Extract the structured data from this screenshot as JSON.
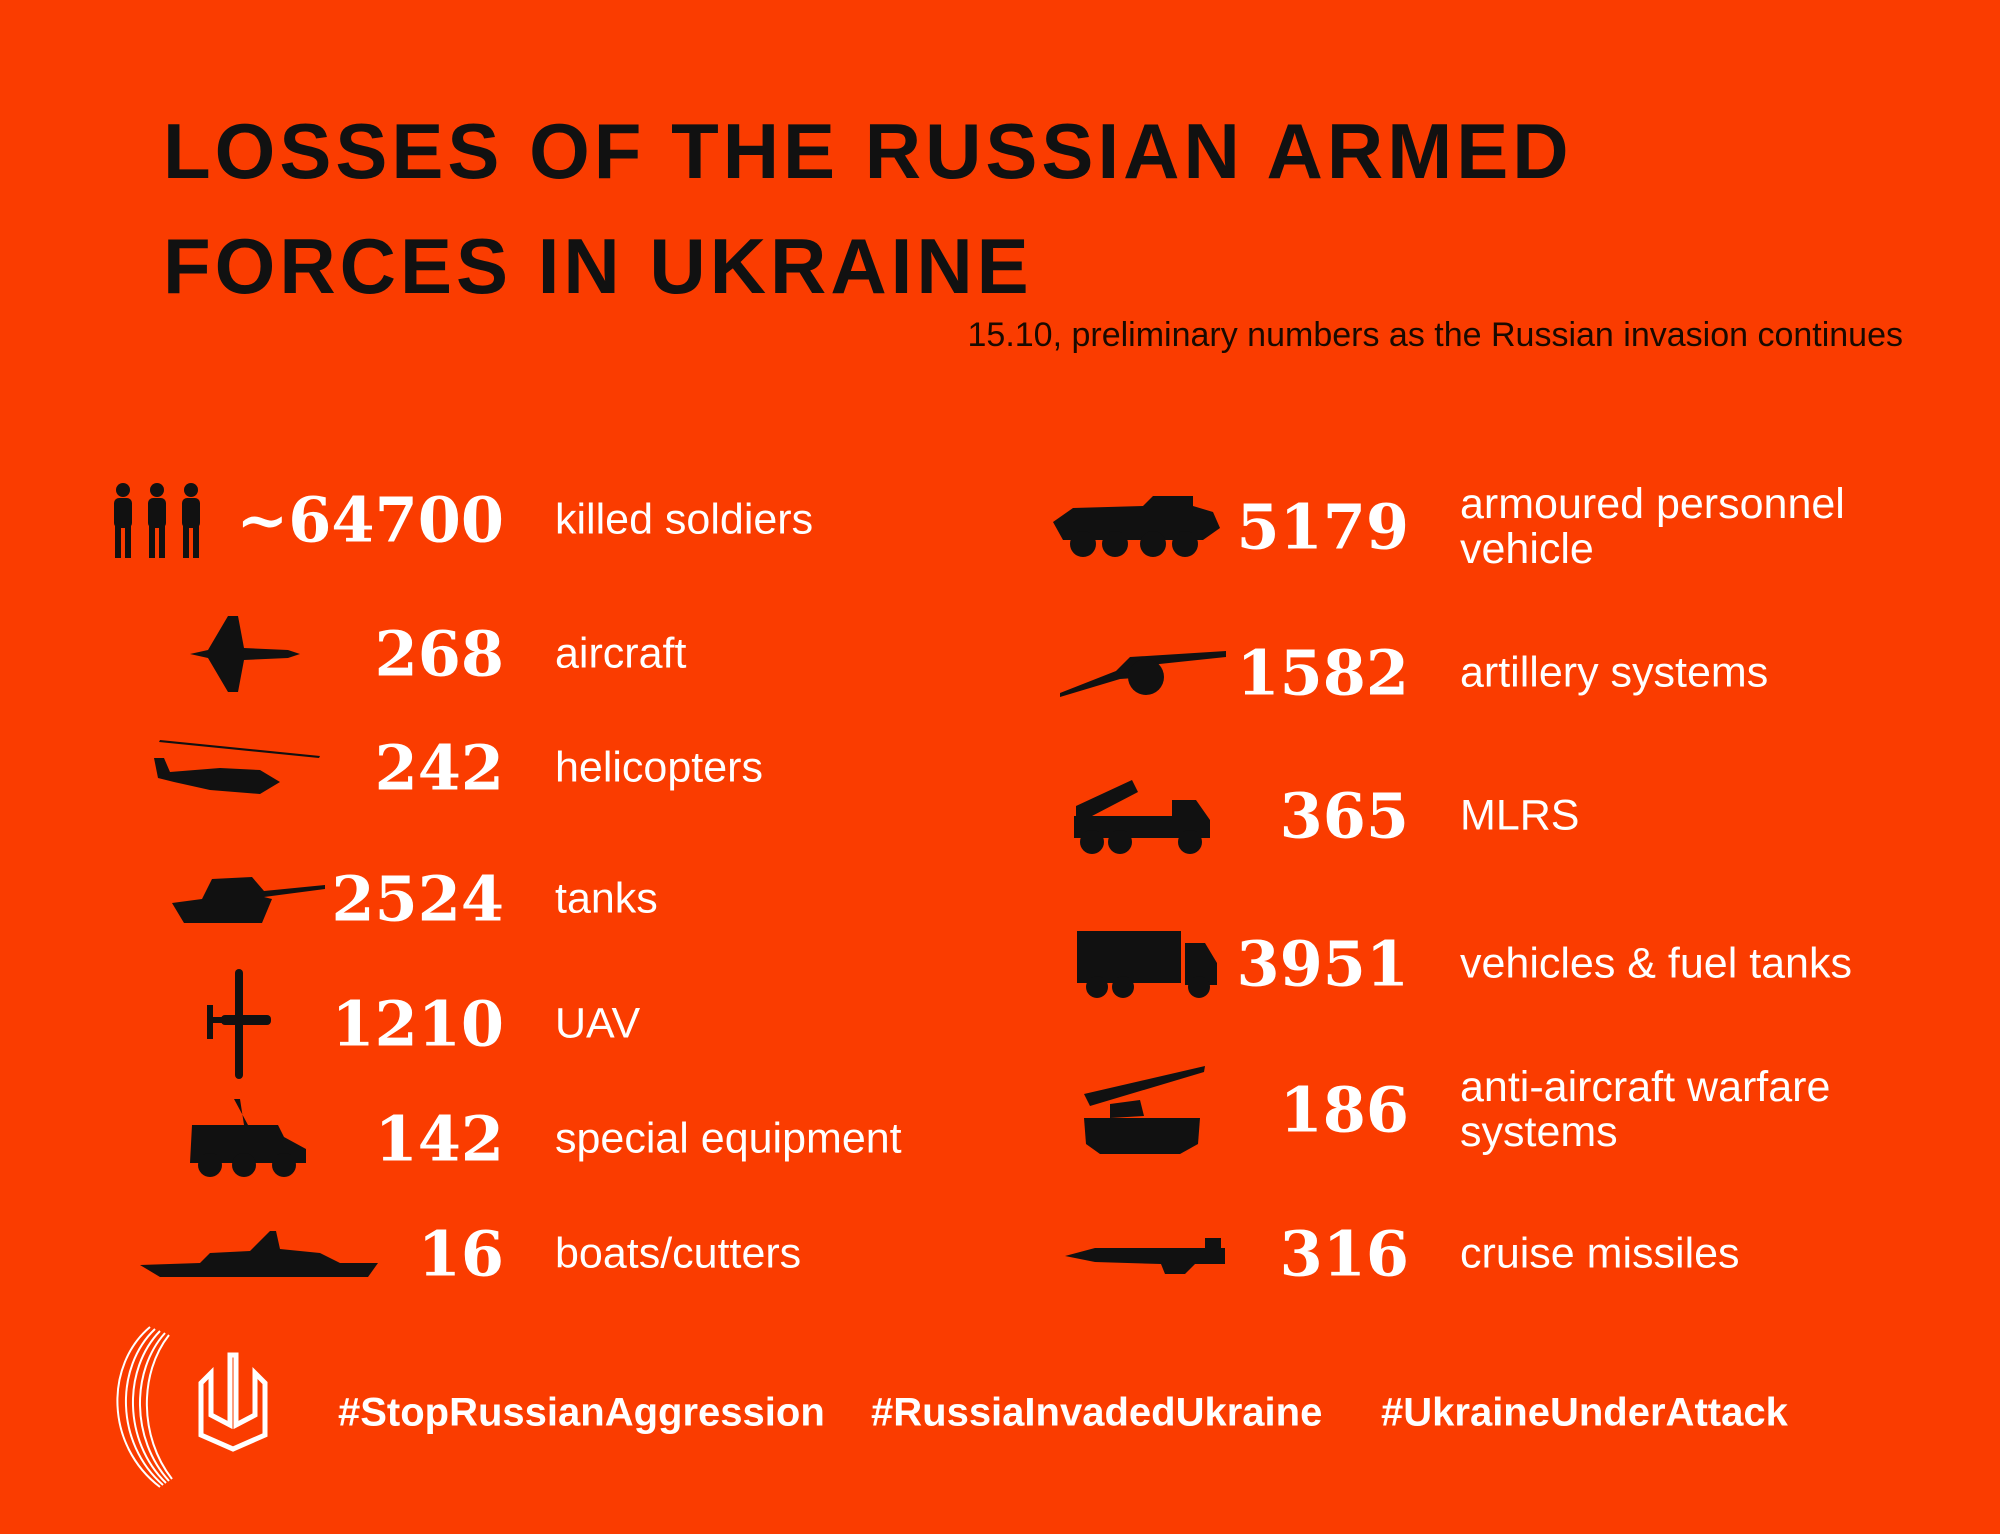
{
  "header": {
    "title": "LOSSES OF THE RUSSIAN ARMED FORCES IN UKRAINE",
    "subtitle": "15.10, preliminary numbers as the Russian invasion continues"
  },
  "left_items": [
    {
      "number": "~64700",
      "label": "killed soldiers"
    },
    {
      "number": 268,
      "label": "aircraft"
    },
    {
      "number": 242,
      "label": "helicopters"
    },
    {
      "number": 2524,
      "label": "tanks"
    },
    {
      "number": 1210,
      "label": "UAV"
    },
    {
      "number": 142,
      "label": "special equipment"
    },
    {
      "number": 16,
      "label": "boats/cutters"
    }
  ],
  "right_items": [
    {
      "number": 5179,
      "label": "armoured personnel vehicle"
    },
    {
      "number": 1582,
      "label": "artillery systems"
    },
    {
      "number": 365,
      "label": "MLRS"
    },
    {
      "number": 3951,
      "label": "vehicles & fuel tanks"
    },
    {
      "number": 186,
      "label": "anti-aircraft warfare systems"
    },
    {
      "number": 316,
      "label": "cruise missiles"
    }
  ],
  "footer": {
    "hashtags": [
      "#StopRussianAggression",
      "#RussiaInvadedUkraine",
      "#UkraineUnderAttack"
    ]
  }
}
